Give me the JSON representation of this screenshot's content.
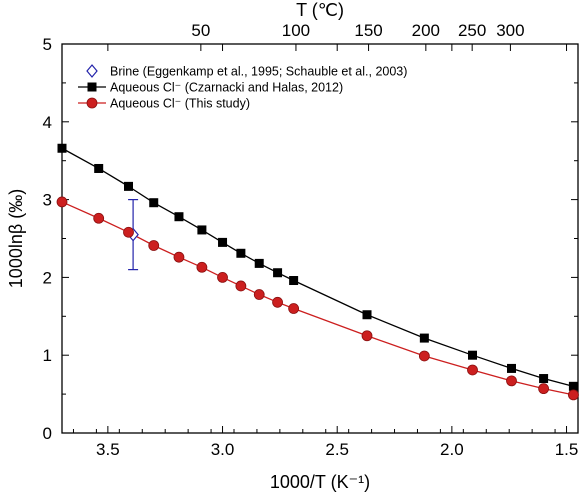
{
  "chart_data": {
    "type": "line",
    "xlabel": "1000/T (K⁻¹)",
    "ylabel": "1000lnβ (‰)",
    "top_xlabel": "T (℃)",
    "xlim": [
      3.7,
      1.45
    ],
    "ylim": [
      0,
      5
    ],
    "x_ticks": [
      3.5,
      3.0,
      2.5,
      2.0,
      1.5
    ],
    "x_tick_labels": [
      "3.5",
      "3.0",
      "2.5",
      "2.0",
      "1.5"
    ],
    "y_ticks": [
      0,
      1,
      2,
      3,
      4,
      5
    ],
    "y_tick_labels": [
      "0",
      "1",
      "2",
      "3",
      "4",
      "5"
    ],
    "top_ticks": [
      50,
      100,
      150,
      200,
      250,
      300
    ],
    "top_tick_labels": [
      "50",
      "100",
      "150",
      "200",
      "250",
      "300"
    ],
    "series": [
      {
        "name": "Brine (Eggenkamp et al., 1995; Schauble et al., 2003)",
        "color": "#2222aa",
        "marker": "diamond-open",
        "line": false,
        "x": [
          3.39
        ],
        "y": [
          2.55
        ],
        "yerr": [
          0.45
        ]
      },
      {
        "name": "Aqueous Cl⁻ (Czarnacki and Halas, 2012)",
        "color": "#000000",
        "marker": "square",
        "line": true,
        "x": [
          3.7,
          3.54,
          3.41,
          3.3,
          3.19,
          3.09,
          3.0,
          2.92,
          2.84,
          2.76,
          2.69,
          2.37,
          2.12,
          1.91,
          1.74,
          1.6,
          1.47
        ],
        "y": [
          3.66,
          3.4,
          3.17,
          2.96,
          2.78,
          2.61,
          2.45,
          2.31,
          2.18,
          2.06,
          1.96,
          1.52,
          1.22,
          1.0,
          0.83,
          0.7,
          0.6
        ]
      },
      {
        "name": "Aqueous Cl⁻ (This study)",
        "color": "#cc1f1f",
        "marker": "circle",
        "line": true,
        "x": [
          3.7,
          3.54,
          3.41,
          3.3,
          3.19,
          3.09,
          3.0,
          2.92,
          2.84,
          2.76,
          2.69,
          2.37,
          2.12,
          1.91,
          1.74,
          1.6,
          1.47
        ],
        "y": [
          2.97,
          2.76,
          2.58,
          2.41,
          2.26,
          2.13,
          2.0,
          1.89,
          1.78,
          1.68,
          1.6,
          1.25,
          0.99,
          0.81,
          0.67,
          0.57,
          0.49
        ]
      }
    ],
    "legend_position": "top-left",
    "grid": false
  }
}
